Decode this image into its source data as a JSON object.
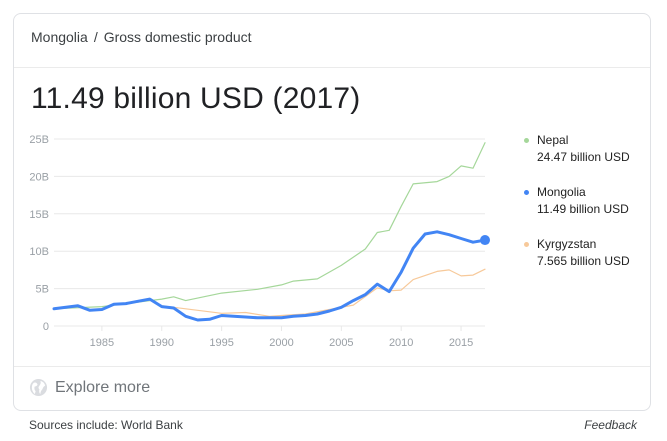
{
  "breadcrumb": {
    "country": "Mongolia",
    "separator": "/",
    "topic": "Gross domestic product"
  },
  "headline": "11.49 billion USD (2017)",
  "explore_label": "Explore more",
  "sources": "Sources include: World Bank",
  "feedback": "Feedback",
  "colors": {
    "nepal": "#a5d79a",
    "mongolia": "#4285f4",
    "kyrgyzstan": "#f7c99a",
    "axis": "#9aa0a6",
    "grid": "#e8e8e8"
  },
  "legend": [
    {
      "name": "Nepal",
      "value": "24.47 billion USD"
    },
    {
      "name": "Mongolia",
      "value": "11.49 billion USD"
    },
    {
      "name": "Kyrgyzstan",
      "value": "7.565 billion USD"
    }
  ],
  "chart_data": {
    "type": "line",
    "x_range": [
      1981,
      2017
    ],
    "ylim": [
      0,
      25
    ],
    "y_ticks": [
      0,
      5,
      10,
      15,
      20,
      25
    ],
    "y_tick_labels": [
      "0",
      "5B",
      "10B",
      "15B",
      "20B",
      "25B"
    ],
    "x_ticks": [
      1985,
      1990,
      1995,
      2000,
      2005,
      2010,
      2015
    ],
    "x_tick_labels": [
      "1985",
      "1990",
      "1995",
      "2000",
      "2005",
      "2010",
      "2015"
    ],
    "series": [
      {
        "name": "Nepal",
        "x": [
          1981,
          1985,
          1988,
          1990,
          1991,
          1992,
          1995,
          1998,
          2000,
          2001,
          2003,
          2005,
          2007,
          2008,
          2009,
          2010,
          2011,
          2013,
          2014,
          2015,
          2016,
          2017
        ],
        "values": [
          2.3,
          2.6,
          3.2,
          3.6,
          3.9,
          3.4,
          4.4,
          4.9,
          5.5,
          6.0,
          6.3,
          8.1,
          10.3,
          12.5,
          12.8,
          16.0,
          19.0,
          19.3,
          20.0,
          21.4,
          21.1,
          24.5
        ]
      },
      {
        "name": "Mongolia",
        "x": [
          1981,
          1982,
          1983,
          1984,
          1985,
          1986,
          1987,
          1988,
          1989,
          1990,
          1991,
          1992,
          1993,
          1994,
          1995,
          1996,
          1997,
          1998,
          1999,
          2000,
          2001,
          2002,
          2003,
          2004,
          2005,
          2006,
          2007,
          2008,
          2009,
          2010,
          2011,
          2012,
          2013,
          2014,
          2015,
          2016,
          2017
        ],
        "values": [
          2.3,
          2.5,
          2.7,
          2.1,
          2.2,
          2.9,
          3.0,
          3.3,
          3.6,
          2.6,
          2.4,
          1.3,
          0.8,
          0.9,
          1.4,
          1.3,
          1.2,
          1.1,
          1.1,
          1.1,
          1.3,
          1.4,
          1.6,
          2.0,
          2.5,
          3.4,
          4.2,
          5.6,
          4.6,
          7.2,
          10.4,
          12.3,
          12.6,
          12.2,
          11.7,
          11.2,
          11.49
        ]
      },
      {
        "name": "Kyrgyzstan",
        "x": [
          1990,
          1992,
          1995,
          1997,
          1999,
          2000,
          2002,
          2004,
          2006,
          2008,
          2009,
          2010,
          2011,
          2013,
          2014,
          2015,
          2016,
          2017
        ],
        "values": [
          2.7,
          2.3,
          1.7,
          1.8,
          1.3,
          1.4,
          1.6,
          2.2,
          2.8,
          5.1,
          4.7,
          4.8,
          6.2,
          7.3,
          7.5,
          6.7,
          6.8,
          7.6
        ]
      }
    ]
  }
}
